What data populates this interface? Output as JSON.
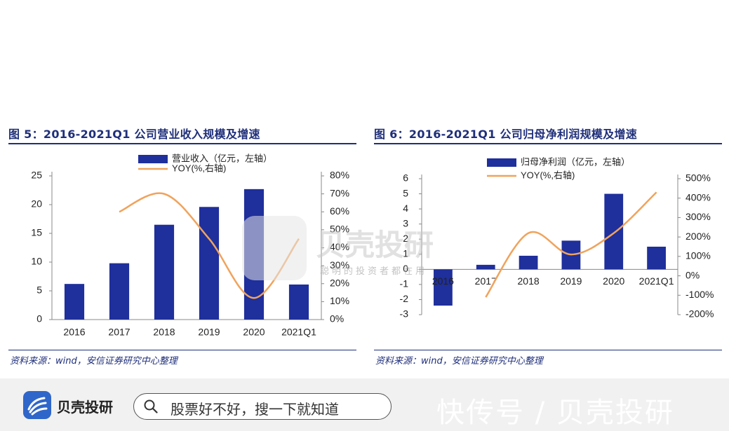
{
  "left_panel": {
    "title": "图 5：2016-2021Q1 公司营业收入规模及增速",
    "source": "资料来源：wind，安信证券研究中心整理"
  },
  "right_panel": {
    "title": "图 6：2016-2021Q1 公司归母净利润规模及增速",
    "source": "资料来源：wind，安信证券研究中心整理"
  },
  "chart_data": [
    {
      "type": "bar",
      "categories": [
        "2016",
        "2017",
        "2018",
        "2019",
        "2020",
        "2021Q1"
      ],
      "series": [
        {
          "name": "营业收入（亿元，左轴）",
          "type": "bar",
          "axis": "left",
          "values": [
            6.2,
            9.8,
            16.5,
            19.6,
            22.7,
            6.1
          ]
        },
        {
          "name": "YOY(%,右轴)",
          "type": "line",
          "axis": "right",
          "values": [
            null,
            60,
            70,
            45,
            12,
            45
          ]
        }
      ],
      "ylim_left": [
        0,
        25
      ],
      "yticks_left": [
        "0",
        "5",
        "10",
        "15",
        "20",
        "25"
      ],
      "ylim_right": [
        0,
        80
      ],
      "yticks_right": [
        "0%",
        "10%",
        "20%",
        "30%",
        "40%",
        "50%",
        "60%",
        "70%",
        "80%"
      ],
      "legend_position": "top",
      "grid": false,
      "colors": {
        "bar": "#1f2f9b",
        "line": "#f0a35c"
      }
    },
    {
      "type": "bar",
      "categories": [
        "2016",
        "2017",
        "2018",
        "2019",
        "2020",
        "2021Q1"
      ],
      "series": [
        {
          "name": "归母净利润（亿元，左轴）",
          "type": "bar",
          "axis": "left",
          "values": [
            -2.4,
            0.3,
            0.9,
            1.9,
            5.0,
            1.5
          ]
        },
        {
          "name": "YOY(%,右轴)",
          "type": "line",
          "axis": "right",
          "values": [
            null,
            -110,
            220,
            110,
            220,
            430
          ]
        }
      ],
      "ylim_left": [
        -3,
        6
      ],
      "yticks_left": [
        "-3",
        "-2",
        "-1",
        "0",
        "1",
        "2",
        "3",
        "4",
        "5",
        "6"
      ],
      "ylim_right": [
        -200,
        500
      ],
      "yticks_right": [
        "-200%",
        "-100%",
        "0%",
        "100%",
        "200%",
        "300%",
        "400%",
        "500%"
      ],
      "legend_position": "top",
      "grid": false,
      "colors": {
        "bar": "#1f2f9b",
        "line": "#f0a35c"
      }
    }
  ],
  "footer": {
    "brand": "贝壳投研",
    "search_placeholder": "股票好不好，搜一下就知道",
    "watermark": "快传号 / 贝壳投研",
    "center_watermark": "贝壳投研",
    "center_watermark_sub": "聪明的投资者都在用"
  }
}
